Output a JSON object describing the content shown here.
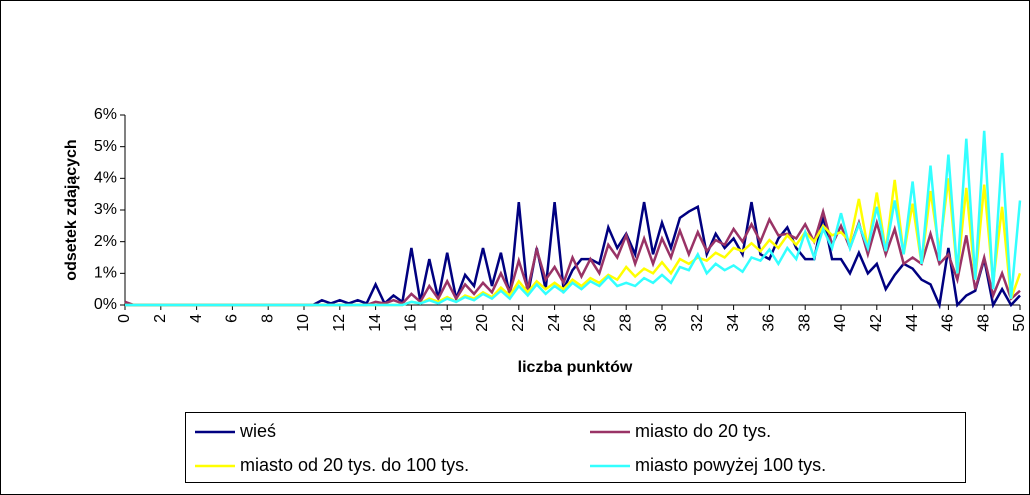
{
  "chart_data": {
    "type": "line",
    "xlabel": "liczba punktów",
    "ylabel": "odsetek zdających",
    "x": [
      0,
      0.5,
      1,
      1.5,
      2,
      2.5,
      3,
      3.5,
      4,
      4.5,
      5,
      5.5,
      6,
      6.5,
      7,
      7.5,
      8,
      8.5,
      9,
      9.5,
      10,
      10.5,
      11,
      11.5,
      12,
      12.5,
      13,
      13.5,
      14,
      14.5,
      15,
      15.5,
      16,
      16.5,
      17,
      17.5,
      18,
      18.5,
      19,
      19.5,
      20,
      20.5,
      21,
      21.5,
      22,
      22.5,
      23,
      23.5,
      24,
      24.5,
      25,
      25.5,
      26,
      26.5,
      27,
      27.5,
      28,
      28.5,
      29,
      29.5,
      30,
      30.5,
      31,
      31.5,
      32,
      32.5,
      33,
      33.5,
      34,
      34.5,
      35,
      35.5,
      36,
      36.5,
      37,
      37.5,
      38,
      38.5,
      39,
      39.5,
      40,
      40.5,
      41,
      41.5,
      42,
      42.5,
      43,
      43.5,
      44,
      44.5,
      45,
      45.5,
      46,
      46.5,
      47,
      47.5,
      48,
      48.5,
      49,
      49.5,
      50
    ],
    "xlim": [
      0,
      50
    ],
    "xticks": [
      0,
      2,
      4,
      6,
      8,
      10,
      12,
      14,
      16,
      18,
      20,
      22,
      24,
      26,
      28,
      30,
      32,
      34,
      36,
      38,
      40,
      42,
      44,
      46,
      48,
      50
    ],
    "ylim": [
      0,
      6
    ],
    "yticks": [
      {
        "value": 0,
        "label": "0%"
      },
      {
        "value": 1,
        "label": "1%"
      },
      {
        "value": 2,
        "label": "2%"
      },
      {
        "value": 3,
        "label": "3%"
      },
      {
        "value": 4,
        "label": "4%"
      },
      {
        "value": 5,
        "label": "5%"
      },
      {
        "value": 6,
        "label": "6%"
      }
    ],
    "grid": false,
    "series": [
      {
        "name": "wieś",
        "color": "#000080",
        "values": [
          0,
          0,
          0,
          0,
          0,
          0,
          0,
          0,
          0,
          0,
          0,
          0,
          0,
          0,
          0,
          0,
          0,
          0,
          0,
          0,
          0,
          0,
          0.15,
          0.05,
          0.15,
          0.05,
          0.15,
          0.05,
          0.65,
          0.05,
          0.3,
          0.1,
          1.8,
          0.1,
          1.45,
          0.2,
          1.65,
          0.2,
          0.95,
          0.6,
          1.8,
          0.6,
          1.65,
          0.3,
          3.25,
          0.3,
          1.8,
          0.5,
          3.25,
          0.5,
          1.1,
          1.45,
          1.45,
          1.3,
          2.45,
          1.8,
          2.25,
          1.6,
          3.25,
          1.6,
          2.6,
          1.8,
          2.75,
          2.95,
          3.1,
          1.6,
          2.25,
          1.8,
          2.1,
          1.6,
          3.25,
          1.6,
          1.45,
          2.1,
          2.45,
          1.8,
          1.45,
          1.45,
          2.8,
          1.45,
          1.45,
          1.0,
          1.65,
          1.0,
          1.3,
          0.5,
          0.95,
          1.3,
          1.15,
          0.8,
          0.65,
          0,
          1.8,
          0,
          0.3,
          0.45,
          1.45,
          0,
          0.5,
          0,
          0.3
        ]
      },
      {
        "name": "miasto do 20 tys.",
        "color": "#993366",
        "values": [
          0.1,
          0,
          0,
          0,
          0,
          0,
          0,
          0,
          0,
          0,
          0,
          0,
          0,
          0,
          0,
          0,
          0,
          0,
          0,
          0,
          0,
          0,
          0,
          0,
          0,
          0,
          0,
          0,
          0.1,
          0.05,
          0.15,
          0.05,
          0.35,
          0.1,
          0.6,
          0.2,
          0.75,
          0.2,
          0.65,
          0.35,
          0.7,
          0.4,
          1.0,
          0.4,
          1.4,
          0.5,
          1.75,
          0.8,
          1.2,
          0.7,
          1.5,
          0.9,
          1.45,
          1.0,
          1.9,
          1.5,
          2.2,
          1.3,
          2.1,
          1.3,
          2.1,
          1.5,
          2.35,
          1.6,
          2.3,
          1.7,
          2.05,
          1.9,
          2.4,
          2.0,
          2.55,
          2.0,
          2.7,
          2.2,
          2.25,
          2.1,
          2.55,
          2.0,
          2.95,
          1.9,
          2.5,
          1.8,
          2.6,
          1.6,
          2.6,
          1.6,
          2.4,
          1.3,
          1.5,
          1.3,
          2.25,
          1.3,
          1.6,
          0.8,
          2.2,
          0.5,
          1.5,
          0.3,
          1.0,
          0.2,
          0.45
        ]
      },
      {
        "name": "miasto od 20 tys. do 100 tys.",
        "color": "#ffff00",
        "values": [
          0,
          0,
          0,
          0,
          0,
          0,
          0,
          0,
          0,
          0,
          0,
          0,
          0,
          0,
          0,
          0,
          0,
          0,
          0,
          0,
          0,
          0,
          0,
          0,
          0,
          0,
          0,
          0,
          0,
          0,
          0,
          0,
          0.1,
          0.05,
          0.2,
          0.1,
          0.25,
          0.1,
          0.3,
          0.2,
          0.4,
          0.25,
          0.55,
          0.3,
          0.75,
          0.4,
          0.75,
          0.5,
          0.7,
          0.5,
          0.8,
          0.6,
          0.85,
          0.7,
          0.95,
          0.8,
          1.2,
          0.9,
          1.15,
          1.0,
          1.35,
          1.0,
          1.45,
          1.3,
          1.5,
          1.4,
          1.65,
          1.5,
          1.8,
          1.7,
          1.95,
          1.7,
          2.05,
          1.8,
          2.2,
          1.9,
          2.3,
          2.0,
          2.5,
          2.2,
          2.3,
          2.0,
          3.35,
          1.8,
          3.55,
          1.7,
          3.95,
          1.6,
          3.2,
          1.3,
          3.6,
          1.7,
          4.0,
          1.0,
          3.7,
          0.8,
          3.8,
          0.7,
          3.1,
          0.2,
          1.0
        ]
      },
      {
        "name": "miasto powyżej 100 tys.",
        "color": "#33ffff",
        "values": [
          0,
          0,
          0,
          0,
          0,
          0,
          0,
          0,
          0,
          0,
          0,
          0,
          0,
          0,
          0,
          0,
          0,
          0,
          0,
          0,
          0,
          0,
          0,
          0,
          0,
          0,
          0,
          0,
          0,
          0,
          0,
          0,
          0.1,
          0.05,
          0.15,
          0.05,
          0.2,
          0.1,
          0.25,
          0.15,
          0.35,
          0.2,
          0.45,
          0.2,
          0.6,
          0.3,
          0.65,
          0.35,
          0.6,
          0.4,
          0.7,
          0.5,
          0.75,
          0.6,
          0.9,
          0.6,
          0.7,
          0.6,
          0.85,
          0.7,
          0.95,
          0.7,
          1.2,
          1.1,
          1.6,
          1.0,
          1.3,
          1.1,
          1.25,
          1.05,
          1.5,
          1.4,
          1.75,
          1.3,
          1.8,
          1.45,
          2.3,
          1.5,
          2.4,
          1.8,
          2.9,
          1.8,
          2.55,
          1.8,
          3.1,
          1.7,
          3.3,
          1.6,
          3.9,
          1.3,
          4.4,
          1.4,
          4.75,
          1.0,
          5.25,
          0.8,
          5.5,
          0.5,
          4.8,
          0.2,
          3.3
        ]
      }
    ]
  }
}
